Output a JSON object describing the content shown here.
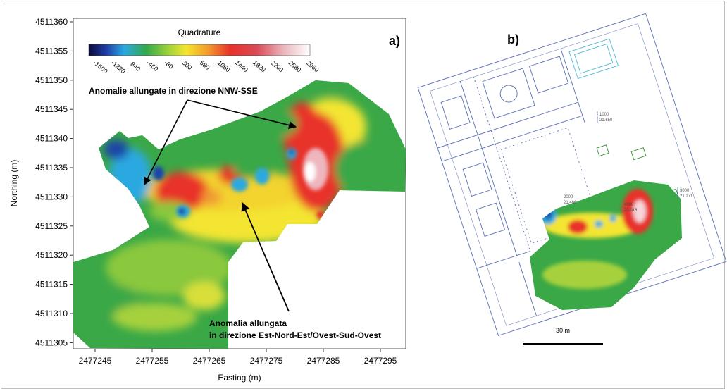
{
  "panel_a": {
    "label": "a)",
    "colorbar": {
      "title": "Quadrature",
      "ticks": [
        "-1600",
        "-1220",
        "-840",
        "-460",
        "-80",
        "300",
        "680",
        "1060",
        "1440",
        "1820",
        "2200",
        "2580",
        "2960"
      ]
    },
    "xaxis": {
      "title": "Easting (m)",
      "ticks": [
        "2477245",
        "2477255",
        "2477265",
        "2477275",
        "2477285",
        "2477295"
      ]
    },
    "yaxis": {
      "title": "Northing (m)",
      "ticks": [
        "4511360",
        "4511355",
        "4511350",
        "4511345",
        "4511340",
        "4511335",
        "4511330",
        "4511325",
        "4511320",
        "4511315",
        "4511310",
        "4511305"
      ]
    },
    "annotation_top": "Anomalie allungate in direzione NNW-SSE",
    "annotation_bottom_line1": "Anomalia allungata",
    "annotation_bottom_line2": "in direzione Est-Nord-Est/Ovest-Sud-Ovest"
  },
  "panel_b": {
    "label": "b)",
    "scale_label": "30 m",
    "benchmarks": [
      {
        "id": "1000",
        "elevation": "21.650"
      },
      {
        "id": "2000",
        "elevation": "21.466"
      },
      {
        "id": "3000",
        "elevation": "21.271"
      },
      {
        "id": "4000",
        "elevation": "20.016"
      }
    ]
  },
  "colors": {
    "map_blue": "#1f44a8",
    "map_green": "#3aa846",
    "map_yellow": "#f3e532",
    "map_red": "#e8322b",
    "plan_lines": "#5a6fb5"
  }
}
